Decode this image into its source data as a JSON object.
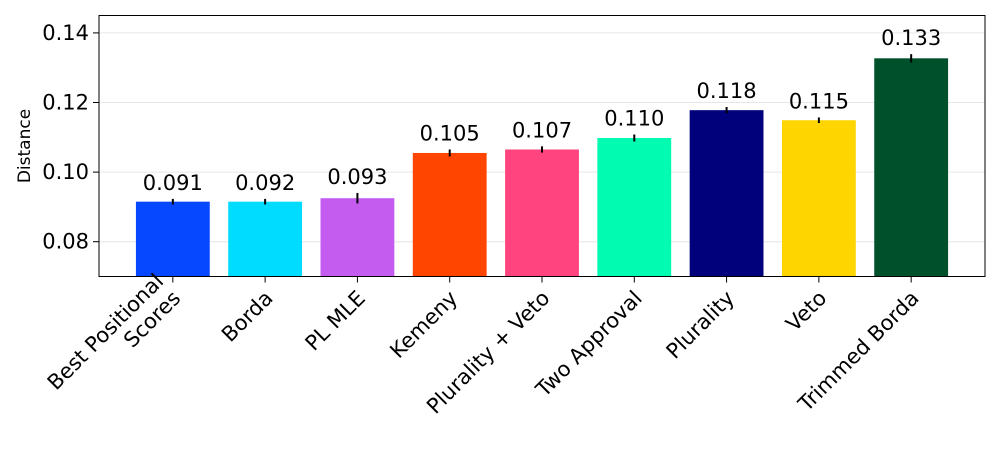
{
  "chart_data": {
    "type": "bar",
    "title": "",
    "xlabel": "",
    "ylabel": "Distance",
    "ylim": [
      0.07,
      0.145
    ],
    "yticks": [
      0.08,
      0.1,
      0.12,
      0.14
    ],
    "ytick_labels": [
      "0.08",
      "0.10",
      "0.12",
      "0.14"
    ],
    "grid": true,
    "categories": [
      "Best Positional Scores",
      "Borda",
      "PL MLE",
      "Kemeny",
      "Plurality + Veto",
      "Two Approval",
      "Plurality",
      "Veto",
      "Trimmed Borda"
    ],
    "category_label_lines": [
      [
        "Best Positional",
        "Scores"
      ],
      [
        "Borda"
      ],
      [
        "PL MLE"
      ],
      [
        "Kemeny"
      ],
      [
        "Plurality + Veto"
      ],
      [
        "Two Approval"
      ],
      [
        "Plurality"
      ],
      [
        "Veto"
      ],
      [
        "Trimmed Borda"
      ]
    ],
    "values": [
      0.0915,
      0.0915,
      0.0925,
      0.1055,
      0.1065,
      0.1098,
      0.1178,
      0.1149,
      0.1327
    ],
    "errors": [
      0.0008,
      0.0008,
      0.0015,
      0.001,
      0.0009,
      0.001,
      0.0009,
      0.0008,
      0.0012
    ],
    "value_labels": [
      "0.091",
      "0.092",
      "0.093",
      "0.105",
      "0.107",
      "0.110",
      "0.118",
      "0.115",
      "0.133"
    ],
    "colors": [
      "#0548ff",
      "#00dcff",
      "#c55cf0",
      "#ff4500",
      "#ff447f",
      "#00fbb1",
      "#01017b",
      "#ffd500",
      "#00502b"
    ]
  }
}
